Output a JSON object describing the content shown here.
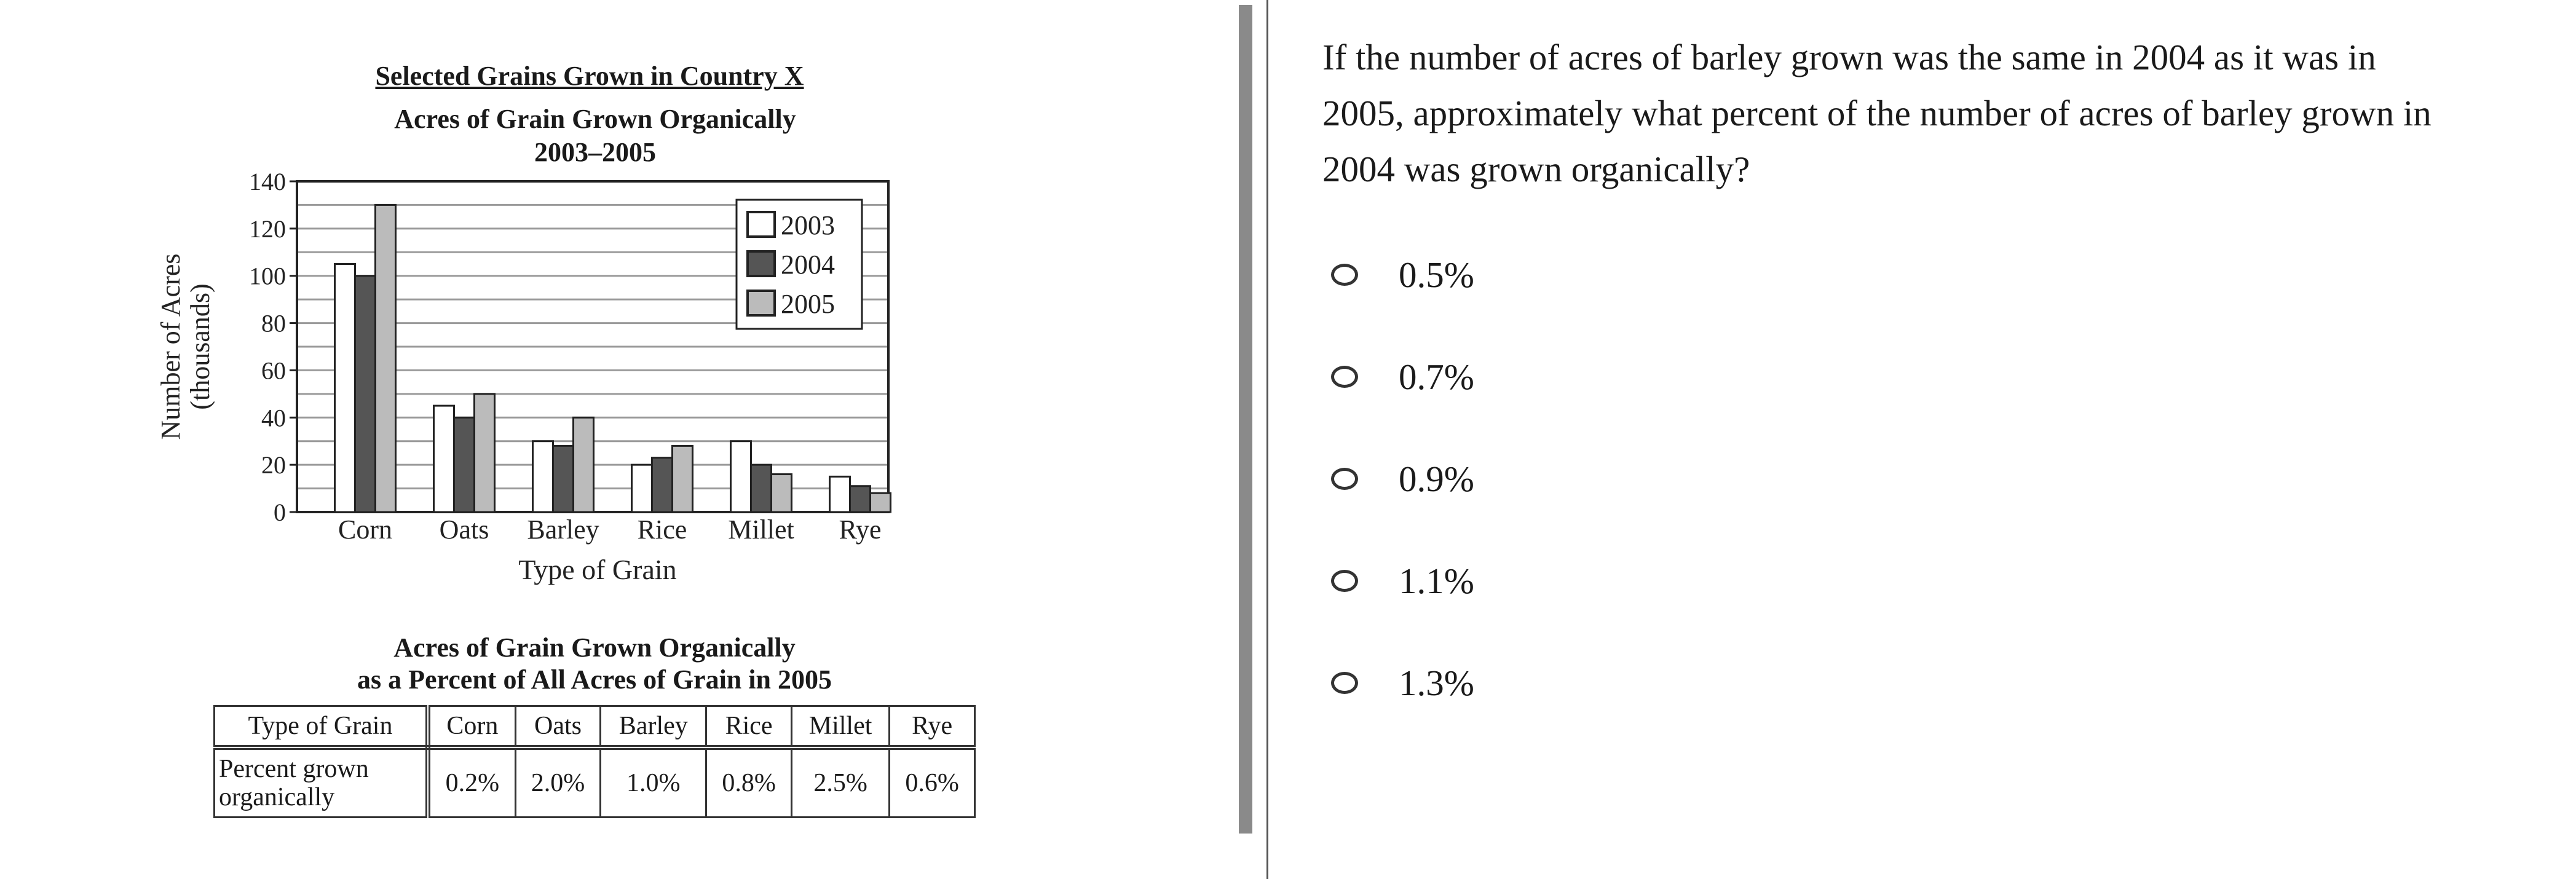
{
  "chart_data": [
    {
      "type": "bar",
      "title": "Selected Grains Grown in Country X",
      "subtitle": "Acres of Grain Grown Organically",
      "subtitle2": "2003–2005",
      "xlabel": "Type of Grain",
      "ylabel": "Number of Acres",
      "ylabel2": "(thousands)",
      "categories": [
        "Corn",
        "Oats",
        "Barley",
        "Rice",
        "Millet",
        "Rye"
      ],
      "ylim": [
        0,
        140
      ],
      "yticks": [
        "0",
        "20",
        "40",
        "60",
        "80",
        "100",
        "120",
        "140"
      ],
      "grid": true,
      "legend": "top-right",
      "series": [
        {
          "name": "2003",
          "color": "#ffffff",
          "values": [
            105,
            45,
            30,
            20,
            30,
            15
          ]
        },
        {
          "name": "2004",
          "color": "#555555",
          "values": [
            100,
            40,
            28,
            23,
            20,
            11
          ]
        },
        {
          "name": "2005",
          "color": "#bbbbbb",
          "values": [
            130,
            50,
            40,
            28,
            16,
            8
          ]
        }
      ]
    },
    {
      "type": "table",
      "title": "Acres of Grain Grown Organically",
      "title2": "as a Percent of All Acres of Grain in 2005",
      "header": [
        "Type of Grain",
        "Corn",
        "Oats",
        "Barley",
        "Rice",
        "Millet",
        "Rye"
      ],
      "row": [
        "Percent grown organically",
        "0.2%",
        "2.0%",
        "1.0%",
        "0.8%",
        "2.5%",
        "0.6%"
      ]
    }
  ],
  "question": {
    "text": "If the number of acres of barley grown was the same in 2004 as it was in 2005, approximately what percent of the number of acres of barley grown in 2004 was grown organically?",
    "options": [
      "0.5%",
      "0.7%",
      "0.9%",
      "1.1%",
      "1.3%"
    ]
  }
}
